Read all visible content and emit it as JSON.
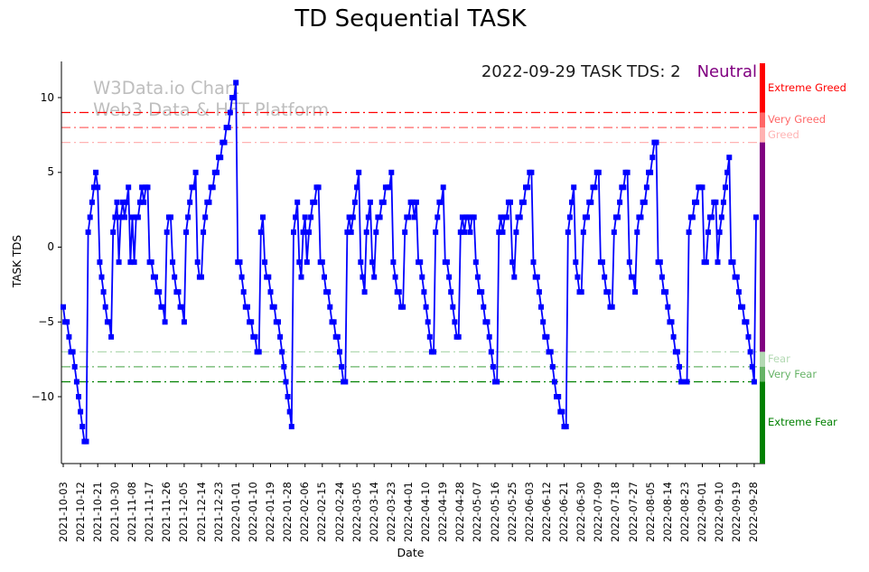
{
  "title": "TD Sequential TASK",
  "annotation": {
    "date_value_text": "2022-09-29 TASK TDS: 2",
    "sentiment": "Neutral",
    "sentiment_color": "#800080"
  },
  "watermark": {
    "line1": "W3Data.io Chart",
    "line2": "Web3 Data & HFT Platform"
  },
  "colors": {
    "line": "#0000ff",
    "greed": "#ff0000",
    "fear": "#008000",
    "neutral_zone": "#800080",
    "axis": "#000000"
  },
  "chart_data": {
    "type": "line",
    "title": "TD Sequential TASK",
    "xlabel": "Date",
    "ylabel": "TASK TDS",
    "ylim": [
      -14.5,
      12.5
    ],
    "grid": false,
    "legend": "none",
    "y_ticks": [
      "10",
      "5",
      "0",
      "−5",
      "−10"
    ],
    "y_tick_values": [
      10,
      5,
      0,
      -5,
      -10
    ],
    "x_tick_interval_days": 9,
    "x_tick_labels": [
      "2021-10-03",
      "2021-10-12",
      "2021-10-21",
      "2021-10-30",
      "2021-11-08",
      "2021-11-17",
      "2021-11-26",
      "2021-12-05",
      "2021-12-14",
      "2021-12-23",
      "2022-01-01",
      "2022-01-10",
      "2022-01-19",
      "2022-01-28",
      "2022-02-06",
      "2022-02-15",
      "2022-02-24",
      "2022-03-05",
      "2022-03-14",
      "2022-03-23",
      "2022-04-01",
      "2022-04-10",
      "2022-04-19",
      "2022-04-28",
      "2022-05-07",
      "2022-05-16",
      "2022-05-25",
      "2022-06-03",
      "2022-06-12",
      "2022-06-21",
      "2022-06-30",
      "2022-07-09",
      "2022-07-18",
      "2022-07-27",
      "2022-08-05",
      "2022-08-14",
      "2022-08-23",
      "2022-09-01",
      "2022-09-10",
      "2022-09-19",
      "2022-09-28"
    ],
    "threshold_lines": [
      {
        "value": 9,
        "label": "Extreme Greed",
        "color": "#ff0000",
        "opacity": 1.0
      },
      {
        "value": 8,
        "label": "Very Greed",
        "color": "#ff0000",
        "opacity": 0.6
      },
      {
        "value": 7,
        "label": "Greed",
        "color": "#ff0000",
        "opacity": 0.3
      },
      {
        "value": -7,
        "label": "Fear",
        "color": "#008000",
        "opacity": 0.3
      },
      {
        "value": -8,
        "label": "Very Fear",
        "color": "#008000",
        "opacity": 0.6
      },
      {
        "value": -9,
        "label": "Extreme Fear",
        "color": "#008000",
        "opacity": 1.0
      }
    ],
    "series": [
      {
        "name": "TASK TDS",
        "color": "#0000ff",
        "marker": "square",
        "start_date": "2021-10-03",
        "end_date": "2022-09-29",
        "values": [
          -4,
          -5,
          -5,
          -6,
          -7,
          -7,
          -8,
          -9,
          -10,
          -11,
          -12,
          -13,
          -13,
          1,
          2,
          3,
          4,
          5,
          4,
          -1,
          -2,
          -3,
          -4,
          -5,
          -5,
          -6,
          1,
          2,
          3,
          -1,
          2,
          3,
          2,
          3,
          4,
          -1,
          2,
          -1,
          2,
          2,
          3,
          4,
          3,
          4,
          4,
          -1,
          -1,
          -2,
          -2,
          -3,
          -3,
          -4,
          -4,
          -5,
          1,
          2,
          2,
          -1,
          -2,
          -3,
          -3,
          -4,
          -4,
          -5,
          1,
          2,
          3,
          4,
          4,
          5,
          -1,
          -2,
          -2,
          1,
          2,
          3,
          3,
          4,
          4,
          5,
          5,
          6,
          6,
          7,
          7,
          8,
          8,
          9,
          10,
          10,
          11,
          -1,
          -1,
          -2,
          -3,
          -4,
          -4,
          -5,
          -5,
          -6,
          -6,
          -7,
          -7,
          1,
          2,
          -1,
          -2,
          -2,
          -3,
          -4,
          -4,
          -5,
          -5,
          -6,
          -7,
          -8,
          -9,
          -10,
          -11,
          -12,
          1,
          2,
          3,
          -1,
          -2,
          1,
          2,
          -1,
          1,
          2,
          3,
          3,
          4,
          4,
          -1,
          -1,
          -2,
          -3,
          -3,
          -4,
          -5,
          -5,
          -6,
          -6,
          -7,
          -8,
          -9,
          -9,
          1,
          2,
          1,
          2,
          3,
          4,
          5,
          -1,
          -2,
          -3,
          1,
          2,
          3,
          -1,
          -2,
          1,
          2,
          2,
          3,
          3,
          4,
          4,
          4,
          5,
          -1,
          -2,
          -3,
          -3,
          -4,
          -4,
          1,
          2,
          2,
          3,
          3,
          2,
          3,
          -1,
          -1,
          -2,
          -3,
          -4,
          -5,
          -6,
          -7,
          -7,
          1,
          2,
          3,
          3,
          4,
          -1,
          -1,
          -2,
          -3,
          -4,
          -5,
          -6,
          -6,
          1,
          2,
          1,
          2,
          2,
          1,
          2,
          2,
          -1,
          -2,
          -3,
          -3,
          -4,
          -5,
          -5,
          -6,
          -7,
          -8,
          -9,
          -9,
          1,
          2,
          1,
          2,
          2,
          3,
          3,
          -1,
          -2,
          1,
          2,
          2,
          3,
          3,
          4,
          4,
          5,
          5,
          -1,
          -2,
          -2,
          -3,
          -4,
          -5,
          -6,
          -6,
          -7,
          -7,
          -8,
          -9,
          -10,
          -10,
          -11,
          -11,
          -12,
          -12,
          1,
          2,
          3,
          4,
          -1,
          -2,
          -3,
          -3,
          1,
          2,
          2,
          3,
          3,
          4,
          4,
          5,
          5,
          -1,
          -1,
          -2,
          -3,
          -3,
          -4,
          -4,
          1,
          2,
          2,
          3,
          4,
          4,
          5,
          5,
          -1,
          -2,
          -2,
          -3,
          1,
          2,
          2,
          3,
          3,
          4,
          5,
          5,
          6,
          7,
          7,
          -1,
          -1,
          -2,
          -3,
          -3,
          -4,
          -5,
          -5,
          -6,
          -7,
          -7,
          -8,
          -9,
          -9,
          -9,
          -9,
          1,
          2,
          2,
          3,
          3,
          4,
          4,
          4,
          -1,
          -1,
          1,
          2,
          2,
          3,
          3,
          -1,
          1,
          2,
          3,
          4,
          5,
          6,
          -1,
          -1,
          -2,
          -2,
          -3,
          -4,
          -4,
          -5,
          -5,
          -6,
          -7,
          -8,
          -9,
          2
        ]
      }
    ]
  }
}
